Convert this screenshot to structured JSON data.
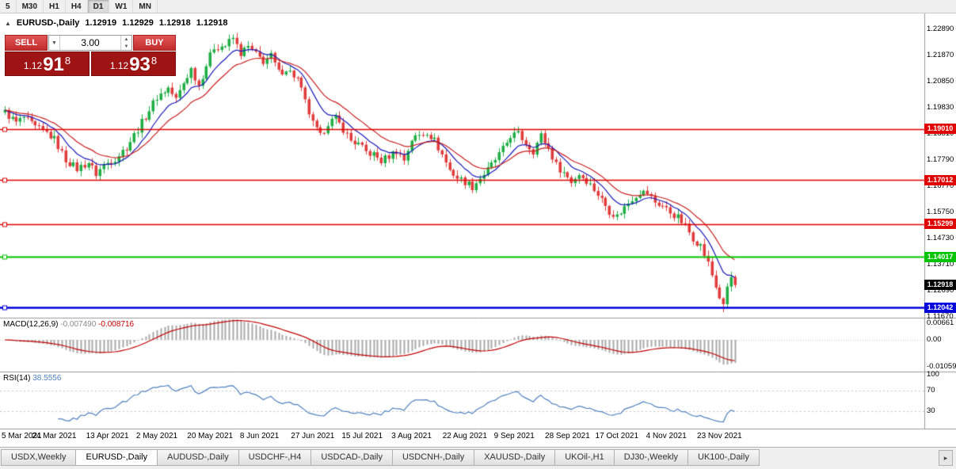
{
  "toolbar": {
    "timeframes": [
      "5",
      "M30",
      "H1",
      "H4",
      "D1",
      "W1",
      "MN"
    ],
    "active": "D1"
  },
  "header": {
    "symbol": "EURUSD-,Daily",
    "open": "1.12919",
    "high": "1.12929",
    "low": "1.12918",
    "close": "1.12918"
  },
  "icons": {
    "shift_marker": "▲",
    "dropdown": "▼",
    "spin_up": "▲",
    "spin_down": "▼",
    "scroll_right": "▸"
  },
  "trade_panel": {
    "sell_label": "SELL",
    "buy_label": "BUY",
    "volume": "3.00",
    "sell_price": {
      "small": "1.12",
      "big": "91",
      "sup": "8"
    },
    "buy_price": {
      "small": "1.12",
      "big": "93",
      "sup": "8"
    }
  },
  "price_axis": {
    "ticks": [
      "1.22890",
      "1.21870",
      "1.20850",
      "1.19830",
      "1.18810",
      "1.17790",
      "1.16770",
      "1.15750",
      "1.14730",
      "1.13710",
      "1.12690",
      "1.11670"
    ]
  },
  "hlines": [
    {
      "value": 1.1901,
      "label": "1.19010",
      "color": "#e00000",
      "width": 1.4
    },
    {
      "value": 1.17012,
      "label": "1.17012",
      "color": "#e00000",
      "width": 1.4
    },
    {
      "value": 1.15299,
      "label": "1.15299",
      "color": "#e00000",
      "width": 1.4
    },
    {
      "value": 1.14017,
      "label": "1.14017",
      "color": "#00c400",
      "width": 1.8
    },
    {
      "value": 1.12042,
      "label": "1.12042",
      "color": "#0000dc",
      "width": 2.6
    }
  ],
  "bid": {
    "value": 1.12918,
    "label": "1.12918",
    "color": "#000000"
  },
  "macd": {
    "label": "MACD(12,26,9)",
    "value1": "-0.007490",
    "value2": "-0.008716",
    "ylim": [
      -0.01257,
      0.00817
    ],
    "axis": [
      {
        "label": "0.00661",
        "v": 0.00661
      },
      {
        "label": "0.00",
        "v": 0
      },
      {
        "label": "-0.01059",
        "v": -0.01059
      }
    ],
    "hist_color": "#a8a8a8",
    "signal_color": "#c00000"
  },
  "rsi": {
    "label": "RSI(14)",
    "value": "38.5556",
    "color": "#4f81bd",
    "axis": [
      {
        "label": "100",
        "v": 100
      },
      {
        "label": "70",
        "v": 70
      },
      {
        "label": "30",
        "v": 30
      }
    ],
    "levels": [
      70,
      30
    ]
  },
  "time_axis": {
    "labels": [
      {
        "text": "5 Mar 2021",
        "i": 0
      },
      {
        "text": "24 Mar 2021",
        "i": 13
      },
      {
        "text": "13 Apr 2021",
        "i": 27
      },
      {
        "text": "2 May 2021",
        "i": 40
      },
      {
        "text": "20 May 2021",
        "i": 54
      },
      {
        "text": "8 Jun 2021",
        "i": 67
      },
      {
        "text": "27 Jun 2021",
        "i": 81
      },
      {
        "text": "15 Jul 2021",
        "i": 94
      },
      {
        "text": "3 Aug 2021",
        "i": 107
      },
      {
        "text": "22 Aug 2021",
        "i": 121
      },
      {
        "text": "9 Sep 2021",
        "i": 134
      },
      {
        "text": "28 Sep 2021",
        "i": 148
      },
      {
        "text": "17 Oct 2021",
        "i": 161
      },
      {
        "text": "4 Nov 2021",
        "i": 174
      },
      {
        "text": "23 Nov 2021",
        "i": 188
      }
    ]
  },
  "tabs": {
    "items": [
      "USDX,Weekly",
      "EURUSD-,Daily",
      "AUDUSD-,Daily",
      "USDCHF-,H4",
      "USDCAD-,Daily",
      "USDCNH-,Daily",
      "XAUUSD-,Daily",
      "UKOil-,H1",
      "DJ30-,Weekly",
      "UK100-,Daily"
    ],
    "active_index": 1
  },
  "chart_data": {
    "type": "candlestick",
    "symbol": "EURUSD-",
    "timeframe": "Daily",
    "bars": 193,
    "ylim": [
      1.116424,
      1.23508
    ],
    "last_close": 1.12918,
    "noise": 0.003,
    "wick": 0.0018,
    "spike_low": {
      "i": 189,
      "v": 1.1186
    },
    "up_color": "#1fae45",
    "down_color": "#e03c3c",
    "ma_fast": {
      "period": 9,
      "color": "#1a1ab8"
    },
    "ma_slow": {
      "period": 18,
      "color": "#c81e1e"
    },
    "anchors": [
      [
        0,
        1.1965
      ],
      [
        3,
        1.1925
      ],
      [
        5,
        1.1945
      ],
      [
        8,
        1.1905
      ],
      [
        11,
        1.1885
      ],
      [
        13,
        1.186
      ],
      [
        16,
        1.178
      ],
      [
        19,
        1.1745
      ],
      [
        22,
        1.177
      ],
      [
        24,
        1.1725
      ],
      [
        26,
        1.176
      ],
      [
        29,
        1.1785
      ],
      [
        32,
        1.183
      ],
      [
        35,
        1.19
      ],
      [
        38,
        1.1975
      ],
      [
        40,
        1.2025
      ],
      [
        43,
        1.206
      ],
      [
        45,
        1.2015
      ],
      [
        47,
        1.208
      ],
      [
        49,
        1.2135
      ],
      [
        51,
        1.207
      ],
      [
        53,
        1.215
      ],
      [
        55,
        1.222
      ],
      [
        58,
        1.2225
      ],
      [
        60,
        1.2255
      ],
      [
        62,
        1.2195
      ],
      [
        64,
        1.222
      ],
      [
        66,
        1.219
      ],
      [
        68,
        1.2165
      ],
      [
        70,
        1.2185
      ],
      [
        72,
        1.212
      ],
      [
        74,
        1.2135
      ],
      [
        77,
        1.2095
      ],
      [
        79,
        1.2005
      ],
      [
        81,
        1.192
      ],
      [
        83,
        1.187
      ],
      [
        85,
        1.1925
      ],
      [
        87,
        1.194
      ],
      [
        89,
        1.19
      ],
      [
        91,
        1.1855
      ],
      [
        93,
        1.184
      ],
      [
        95,
        1.181
      ],
      [
        97,
        1.18
      ],
      [
        99,
        1.1775
      ],
      [
        101,
        1.1795
      ],
      [
        103,
        1.1815
      ],
      [
        105,
        1.178
      ],
      [
        107,
        1.186
      ],
      [
        109,
        1.1875
      ],
      [
        111,
        1.189
      ],
      [
        113,
        1.1855
      ],
      [
        115,
        1.18
      ],
      [
        117,
        1.174
      ],
      [
        119,
        1.171
      ],
      [
        121,
        1.1695
      ],
      [
        123,
        1.1675
      ],
      [
        125,
        1.171
      ],
      [
        127,
        1.174
      ],
      [
        129,
        1.178
      ],
      [
        131,
        1.182
      ],
      [
        133,
        1.1875
      ],
      [
        135,
        1.188
      ],
      [
        137,
        1.1845
      ],
      [
        139,
        1.1815
      ],
      [
        141,
        1.1875
      ],
      [
        143,
        1.1825
      ],
      [
        145,
        1.176
      ],
      [
        147,
        1.173
      ],
      [
        149,
        1.1695
      ],
      [
        151,
        1.1725
      ],
      [
        153,
        1.17
      ],
      [
        155,
        1.1665
      ],
      [
        157,
        1.1625
      ],
      [
        159,
        1.158
      ],
      [
        161,
        1.156
      ],
      [
        163,
        1.1595
      ],
      [
        165,
        1.163
      ],
      [
        167,
        1.1655
      ],
      [
        169,
        1.165
      ],
      [
        171,
        1.1615
      ],
      [
        173,
        1.16
      ],
      [
        175,
        1.1575
      ],
      [
        177,
        1.1555
      ],
      [
        179,
        1.152
      ],
      [
        181,
        1.1475
      ],
      [
        183,
        1.1445
      ],
      [
        185,
        1.1375
      ],
      [
        186,
        1.133
      ],
      [
        187,
        1.1285
      ],
      [
        188,
        1.1245
      ],
      [
        189,
        1.1205
      ],
      [
        190,
        1.1285
      ],
      [
        191,
        1.132
      ],
      [
        192,
        1.1292
      ]
    ]
  }
}
